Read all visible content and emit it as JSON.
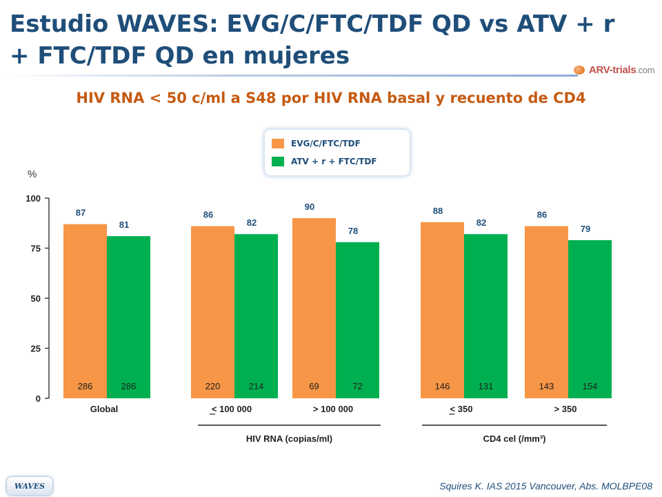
{
  "title": "Estudio WAVES: EVG/C/FTC/TDF QD vs ATV + r + FTC/TDF QD en mujeres",
  "logo": {
    "name": "ARV-trials",
    "suffix": ".com"
  },
  "colors": {
    "title": "#1f4e79",
    "subtitle": "#c55a11",
    "series_1": "#f79646",
    "series_2": "#00b050"
  },
  "chart_data": {
    "type": "bar",
    "title": "HIV RNA < 50 c/ml a S48 por HIV RNA  basal y recuento de CD4",
    "ylabel": "%",
    "ylim": [
      0,
      100
    ],
    "yticks": [
      0,
      25,
      50,
      75,
      100
    ],
    "legend_position": "top-center",
    "categories": [
      "Global",
      "< 100 000",
      "> 100 000",
      "< 350",
      "> 350"
    ],
    "series": [
      {
        "name": "EVG/C/FTC/TDF",
        "values": [
          87,
          86,
          90,
          88,
          86
        ],
        "n": [
          286,
          220,
          69,
          146,
          143
        ]
      },
      {
        "name": "ATV + r + FTC/TDF",
        "values": [
          81,
          82,
          78,
          82,
          79
        ],
        "n": [
          286,
          214,
          72,
          131,
          154
        ]
      }
    ],
    "groups": [
      {
        "label": "HIV RNA (copias/ml)",
        "categories": [
          "< 100 000",
          "> 100 000"
        ]
      },
      {
        "label": "CD4 cel (/mm³)",
        "categories": [
          "< 350",
          "> 350"
        ]
      }
    ]
  },
  "footer": {
    "tab": "WAVES",
    "citation": "Squires K. IAS 2015 Vancouver, Abs. MOLBPE08"
  }
}
